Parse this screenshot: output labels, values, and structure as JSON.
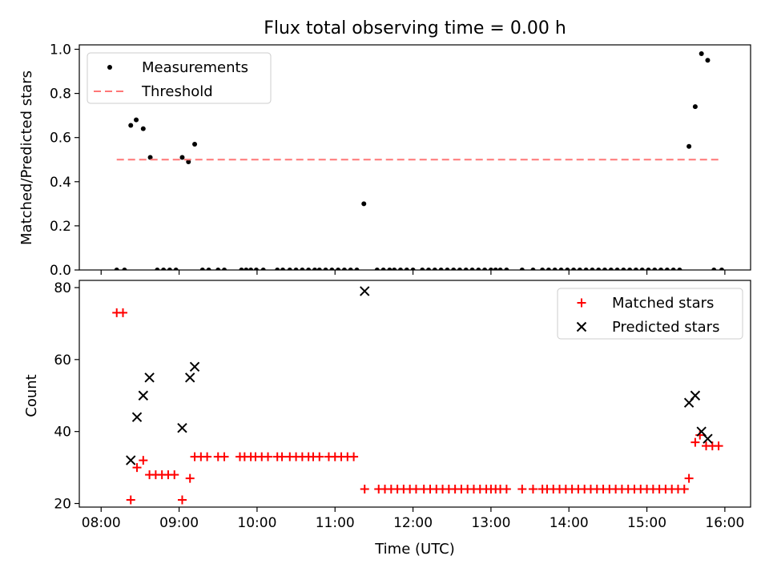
{
  "figure": {
    "title": "Flux total observing time = 0.00 h",
    "xlabel": "Time (UTC)",
    "xticks": [
      "08:00",
      "09:00",
      "10:00",
      "11:00",
      "12:00",
      "13:00",
      "14:00",
      "15:00",
      "16:00"
    ]
  },
  "chart_data": [
    {
      "type": "scatter",
      "ylabel": "Matched/Predicted stars",
      "ylim": [
        0,
        1.02
      ],
      "yticks": [
        "0.0",
        "0.2",
        "0.4",
        "0.6",
        "0.8",
        "1.0"
      ],
      "xlim_hours": [
        7.72,
        16.33
      ],
      "grid": false,
      "legend_position": "top-left",
      "series": [
        {
          "name": "Measurements",
          "kind": "points",
          "color": "#000000",
          "x_hours": [
            8.2,
            8.3,
            8.38,
            8.45,
            8.54,
            8.63,
            8.72,
            8.8,
            8.88,
            8.96,
            9.04,
            9.12,
            9.2,
            9.3,
            9.38,
            9.5,
            9.58,
            9.8,
            9.86,
            9.92,
            9.99,
            10.08,
            10.26,
            10.33,
            10.42,
            10.5,
            10.58,
            10.66,
            10.74,
            10.8,
            10.88,
            10.96,
            11.04,
            11.12,
            11.2,
            11.28,
            11.37,
            11.54,
            11.62,
            11.7,
            11.76,
            11.84,
            11.92,
            12.0,
            12.12,
            12.2,
            12.28,
            12.36,
            12.44,
            12.52,
            12.6,
            12.68,
            12.76,
            12.84,
            12.92,
            13.0,
            13.06,
            13.12,
            13.2,
            13.4,
            13.54,
            13.66,
            13.74,
            13.82,
            13.9,
            13.98,
            14.06,
            14.14,
            14.22,
            14.3,
            14.38,
            14.46,
            14.54,
            14.62,
            14.7,
            14.78,
            14.86,
            14.94,
            15.02,
            15.1,
            15.18,
            15.26,
            15.34,
            15.42,
            15.54,
            15.62,
            15.7,
            15.78,
            15.86,
            15.96
          ],
          "y": [
            0,
            0,
            0.655,
            0.68,
            0.64,
            0.51,
            0,
            0,
            0,
            0,
            0.51,
            0.49,
            0.57,
            0,
            0,
            0,
            0,
            0,
            0,
            0,
            0,
            0,
            0,
            0,
            0,
            0,
            0,
            0,
            0,
            0,
            0,
            0,
            0,
            0,
            0,
            0,
            0.3,
            0,
            0,
            0,
            0,
            0,
            0,
            0,
            0,
            0,
            0,
            0,
            0,
            0,
            0,
            0,
            0,
            0,
            0,
            0,
            0,
            0,
            0,
            0,
            0,
            0,
            0,
            0,
            0,
            0,
            0,
            0,
            0,
            0,
            0,
            0,
            0,
            0,
            0,
            0,
            0,
            0,
            0,
            0,
            0,
            0,
            0,
            0,
            0.56,
            0.74,
            0.98,
            0.95,
            0,
            0
          ]
        },
        {
          "name": "Threshold",
          "kind": "hline",
          "color": "#ff7777",
          "value": 0.5,
          "x_range_hours": [
            8.2,
            15.96
          ]
        }
      ]
    },
    {
      "type": "scatter",
      "ylabel": "Count",
      "ylim": [
        19,
        82
      ],
      "yticks": [
        "20",
        "40",
        "60",
        "80"
      ],
      "xlim_hours": [
        7.72,
        16.33
      ],
      "grid": false,
      "legend_position": "top-right",
      "series": [
        {
          "name": "Matched stars",
          "marker": "plus",
          "color": "#ff0000",
          "x_hours": [
            8.2,
            8.28,
            8.38,
            8.46,
            8.54,
            8.62,
            8.7,
            8.78,
            8.86,
            8.94,
            9.04,
            9.14,
            9.2,
            9.28,
            9.36,
            9.5,
            9.58,
            9.78,
            9.84,
            9.92,
            9.98,
            10.06,
            10.14,
            10.26,
            10.32,
            10.42,
            10.5,
            10.58,
            10.66,
            10.72,
            10.8,
            10.92,
            11.0,
            11.08,
            11.16,
            11.24,
            11.38,
            11.56,
            11.64,
            11.72,
            11.8,
            11.88,
            11.96,
            12.04,
            12.14,
            12.22,
            12.3,
            12.38,
            12.46,
            12.54,
            12.62,
            12.7,
            12.78,
            12.86,
            12.94,
            13.0,
            13.06,
            13.12,
            13.2,
            13.4,
            13.54,
            13.66,
            13.72,
            13.8,
            13.88,
            13.96,
            14.04,
            14.12,
            14.2,
            14.28,
            14.36,
            14.44,
            14.52,
            14.6,
            14.68,
            14.76,
            14.84,
            14.92,
            15.0,
            15.08,
            15.16,
            15.24,
            15.32,
            15.4,
            15.48,
            15.54,
            15.62,
            15.68,
            15.76,
            15.84,
            15.92
          ],
          "y": [
            73,
            73,
            21,
            30,
            32,
            28,
            28,
            28,
            28,
            28,
            21,
            27,
            33,
            33,
            33,
            33,
            33,
            33,
            33,
            33,
            33,
            33,
            33,
            33,
            33,
            33,
            33,
            33,
            33,
            33,
            33,
            33,
            33,
            33,
            33,
            33,
            24,
            24,
            24,
            24,
            24,
            24,
            24,
            24,
            24,
            24,
            24,
            24,
            24,
            24,
            24,
            24,
            24,
            24,
            24,
            24,
            24,
            24,
            24,
            24,
            24,
            24,
            24,
            24,
            24,
            24,
            24,
            24,
            24,
            24,
            24,
            24,
            24,
            24,
            24,
            24,
            24,
            24,
            24,
            24,
            24,
            24,
            24,
            24,
            24,
            27,
            37,
            39,
            36,
            36,
            36
          ]
        },
        {
          "name": "Predicted stars",
          "marker": "x",
          "color": "#000000",
          "x_hours": [
            8.38,
            8.46,
            8.54,
            8.62,
            9.04,
            9.14,
            9.2,
            11.38,
            15.54,
            15.62,
            15.7,
            15.78
          ],
          "y": [
            32,
            44,
            50,
            55,
            41,
            55,
            58,
            79,
            48,
            50,
            40,
            38
          ]
        }
      ]
    }
  ]
}
